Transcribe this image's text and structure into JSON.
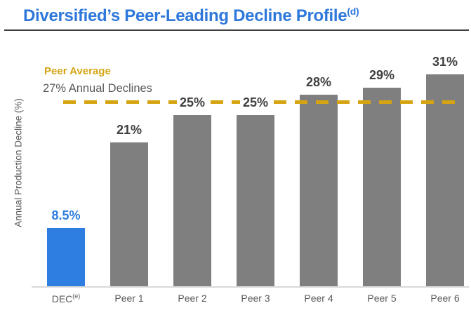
{
  "page": {
    "title": "Diversified’s Peer-Leading Decline Profile",
    "title_superscript": "(d)"
  },
  "chart_data": {
    "type": "bar",
    "ylabel": "Annual Production Decline (%)",
    "xlabel": "",
    "categories": [
      "DEC",
      "Peer 1",
      "Peer 2",
      "Peer 3",
      "Peer 4",
      "Peer 5",
      "Peer 6"
    ],
    "category_superscripts": [
      "(e)",
      "",
      "",
      "",
      "",
      "",
      ""
    ],
    "values": [
      8.5,
      21,
      25,
      25,
      28,
      29,
      31
    ],
    "value_labels": [
      "8.5%",
      "21%",
      "25%",
      "25%",
      "28%",
      "29%",
      "31%"
    ],
    "highlight_index": 0,
    "ylim": [
      0,
      35.7
    ],
    "grid": false,
    "legend": "none",
    "reference_line": {
      "value": 27,
      "style": "dashed",
      "label": "Peer Average",
      "sublabel": "27% Annual Declines"
    },
    "colors": {
      "title_text": "#2e78db",
      "title_rule": "#3f3f3f",
      "highlight_bar": "#2e7de0",
      "default_bar": "#7f7f7f",
      "reference_line": "#d6a413",
      "reference_label": "#d6a413",
      "reference_sublabel": "#595959",
      "value_label": "#3f3f3f",
      "highlight_value_label": "#2e7de0",
      "axis_text": "#595959",
      "axis_line": "#d9d9d9"
    }
  }
}
